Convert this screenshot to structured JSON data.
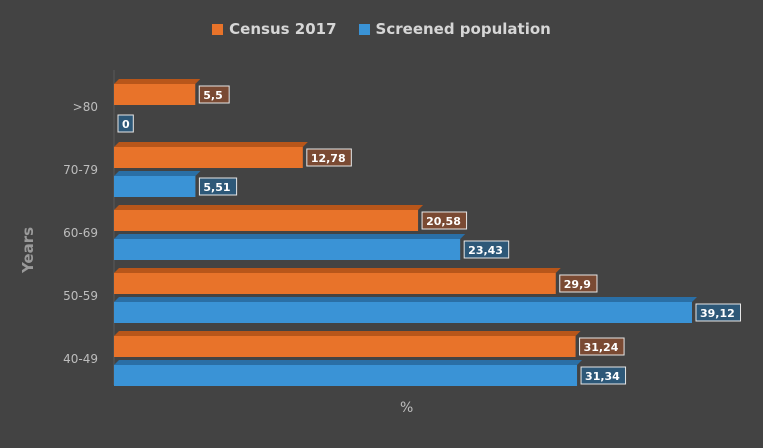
{
  "chart_data": {
    "type": "bar",
    "orientation": "horizontal",
    "categories": [
      ">80",
      "70-79",
      "60-69",
      "50-59",
      "40-49"
    ],
    "series": [
      {
        "name": "Census 2017",
        "color": "#e8732a",
        "values": [
          5.5,
          12.78,
          20.58,
          29.9,
          31.24
        ],
        "labels": [
          "5,5",
          "12,78",
          "20,58",
          "29,9",
          "31,24"
        ]
      },
      {
        "name": "Screened population",
        "color": "#3a93d6",
        "values": [
          0,
          5.51,
          23.43,
          39.12,
          31.34
        ],
        "labels": [
          "0",
          "5,51",
          "23,43",
          "39,12",
          "31,34"
        ]
      }
    ],
    "xlabel": "%",
    "ylabel": "Years",
    "xlim": [
      0,
      40
    ],
    "legend_position": "top-center",
    "grid": false
  }
}
